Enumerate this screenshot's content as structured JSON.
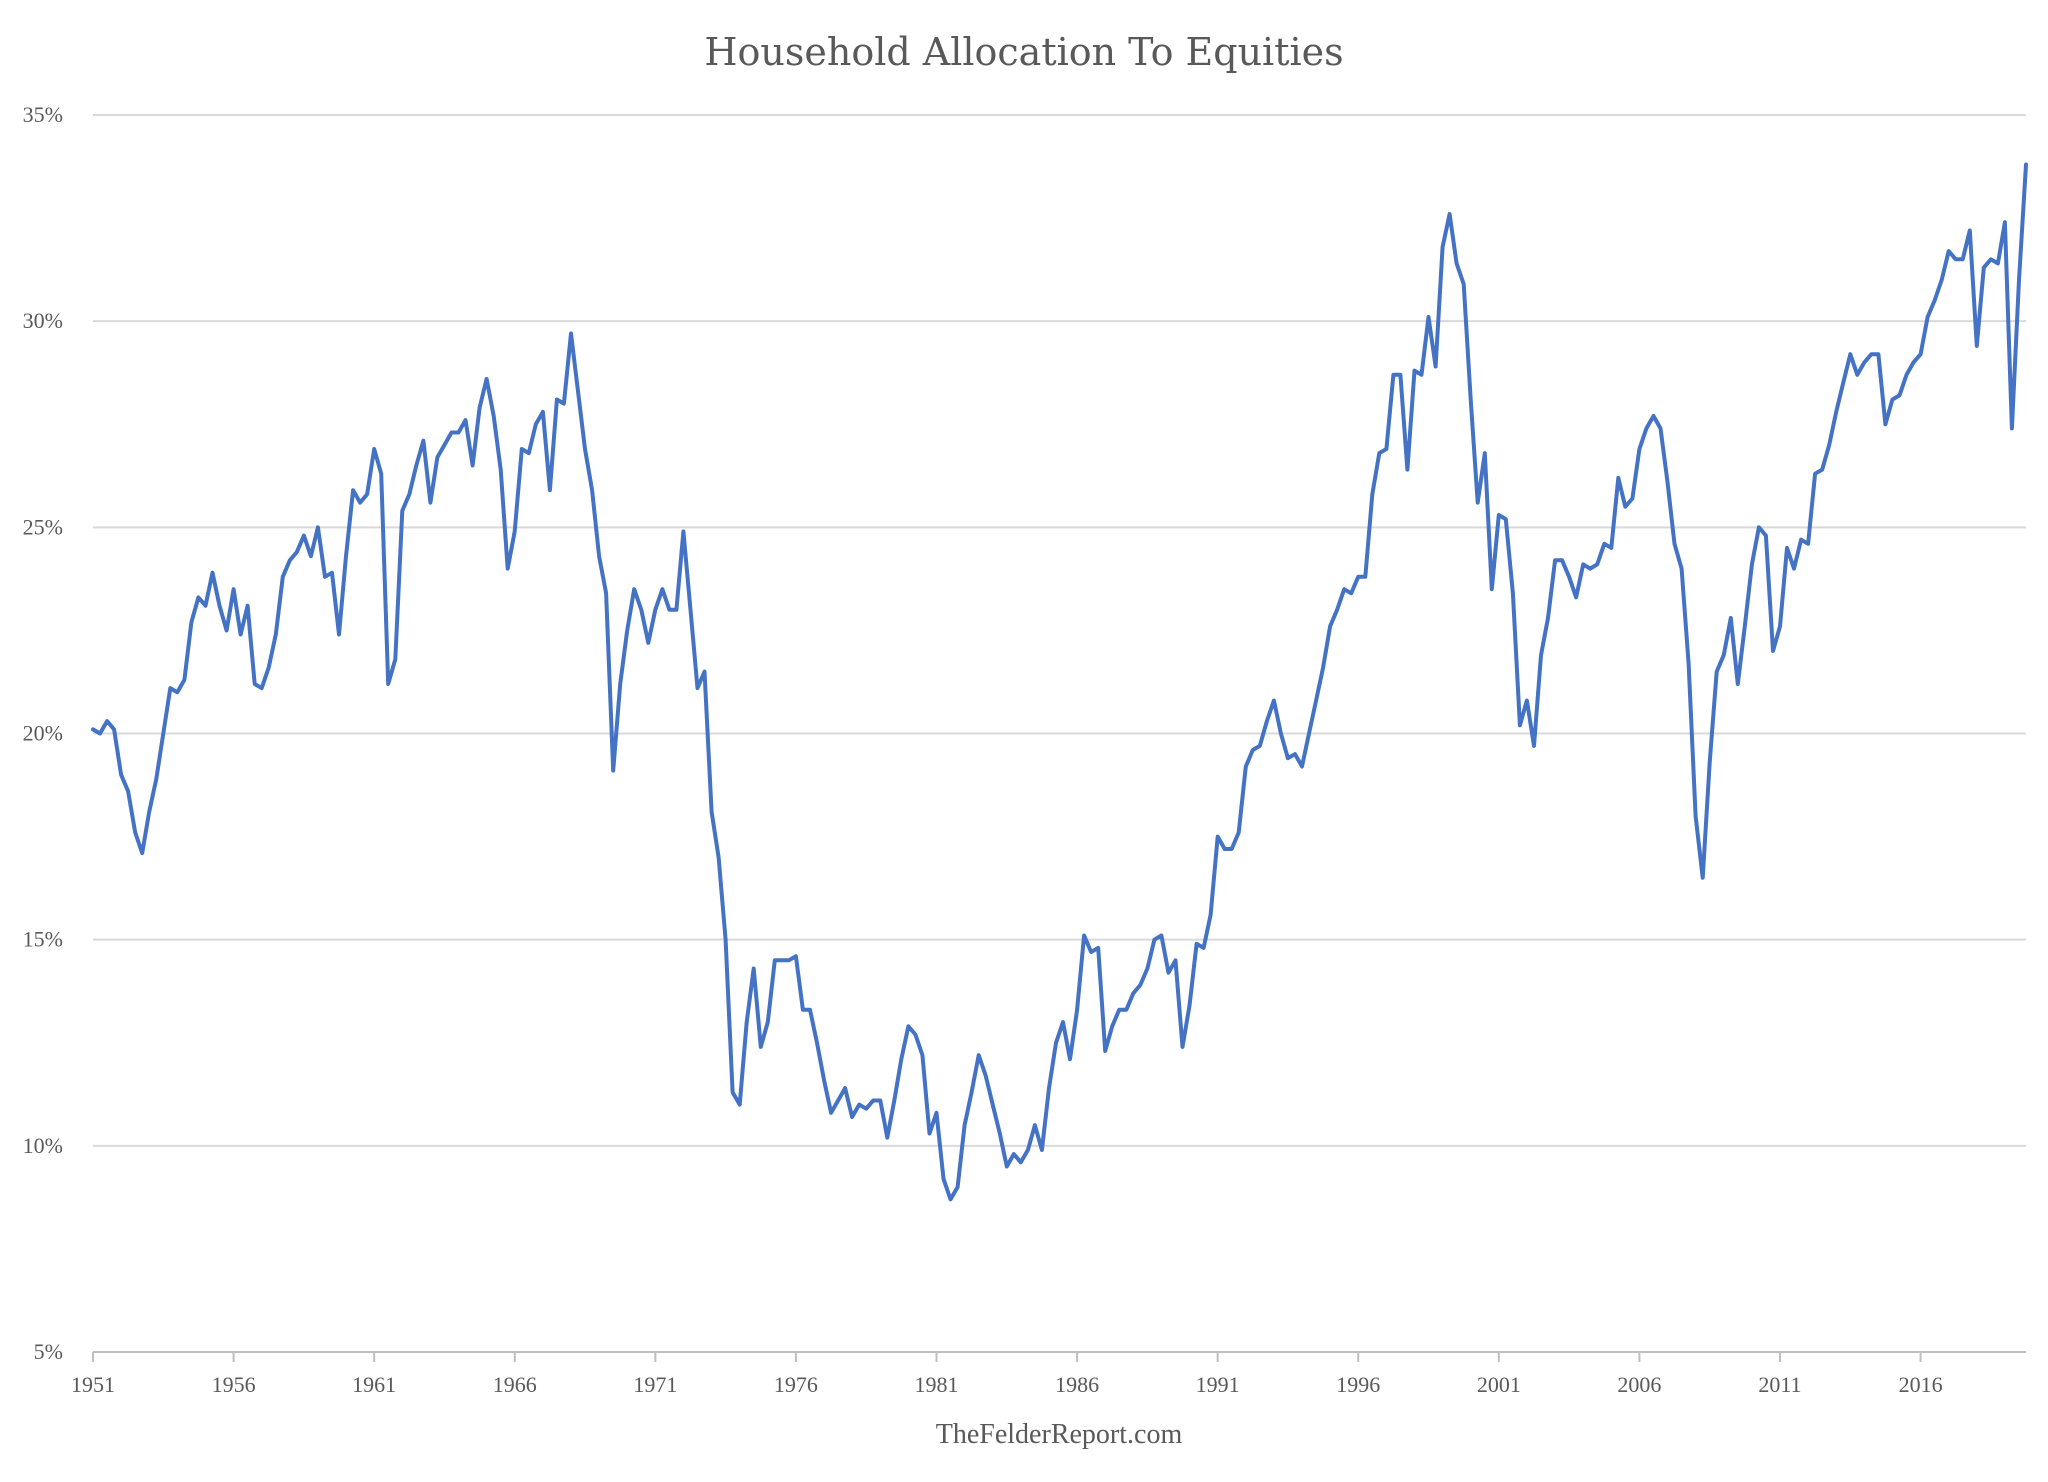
{
  "chart_data": {
    "type": "line",
    "title": "Household Allocation To Equities",
    "source": "TheFelderReport.com",
    "y_format": "percent",
    "ylim": [
      5,
      35
    ],
    "y_ticks": [
      "5%",
      "10%",
      "15%",
      "20%",
      "25%",
      "30%",
      "35%"
    ],
    "y_tick_values": [
      5,
      10,
      15,
      20,
      25,
      30,
      35
    ],
    "x_range": [
      1951,
      2019.75
    ],
    "x_ticks": [
      "1951",
      "1956",
      "1961",
      "1966",
      "1971",
      "1976",
      "1981",
      "1986",
      "1991",
      "1996",
      "2001",
      "2006",
      "2011",
      "2016"
    ],
    "x_tick_values": [
      1951,
      1956,
      1961,
      1966,
      1971,
      1976,
      1981,
      1986,
      1991,
      1996,
      2001,
      2006,
      2011,
      2016
    ],
    "grid": "horizontal",
    "line_color": "#4472c4",
    "series": [
      {
        "x": [
          1951,
          1951.25,
          1951.5,
          1951.75,
          1952,
          1952.25,
          1952.5,
          1952.75,
          1953,
          1953.25,
          1953.5,
          1953.75,
          1954,
          1954.25,
          1954.5,
          1954.75,
          1955,
          1955.25,
          1955.5,
          1955.75,
          1956,
          1956.25,
          1956.5,
          1956.75,
          1957,
          1957.25,
          1957.5,
          1957.75,
          1958,
          1958.25,
          1958.5,
          1958.75,
          1959,
          1959.25,
          1959.5,
          1959.75,
          1960,
          1960.25,
          1960.5,
          1960.75,
          1961,
          1961.25,
          1961.5,
          1961.75,
          1962,
          1962.25,
          1962.5,
          1962.75,
          1963,
          1963.25,
          1963.5,
          1963.75,
          1964,
          1964.25,
          1964.5,
          1964.75,
          1965,
          1965.25,
          1965.5,
          1965.75,
          1966,
          1966.25,
          1966.5,
          1966.75,
          1967,
          1967.25,
          1967.5,
          1967.75,
          1968,
          1968.25,
          1968.5,
          1968.75,
          1969,
          1969.25,
          1969.5,
          1969.75,
          1970,
          1970.25,
          1970.5,
          1970.75,
          1971,
          1971.25,
          1971.5,
          1971.75,
          1972,
          1972.25,
          1972.5,
          1972.75,
          1973,
          1973.25,
          1973.5,
          1973.75,
          1974,
          1974.25,
          1974.5,
          1974.75,
          1975,
          1975.25,
          1975.5,
          1975.75,
          1976,
          1976.25,
          1976.5,
          1976.75,
          1977,
          1977.25,
          1977.5,
          1977.75,
          1978,
          1978.25,
          1978.5,
          1978.75,
          1979,
          1979.25,
          1979.5,
          1979.75,
          1980,
          1980.25,
          1980.5,
          1980.75,
          1981,
          1981.25,
          1981.5,
          1981.75,
          1982,
          1982.25,
          1982.5,
          1982.75,
          1983,
          1983.25,
          1983.5,
          1983.75,
          1984,
          1984.25,
          1984.5,
          1984.75,
          1985,
          1985.25,
          1985.5,
          1985.75,
          1986,
          1986.25,
          1986.5,
          1986.75,
          1987,
          1987.25,
          1987.5,
          1987.75,
          1988,
          1988.25,
          1988.5,
          1988.75,
          1989,
          1989.25,
          1989.5,
          1989.75,
          1990,
          1990.25,
          1990.5,
          1990.75,
          1991,
          1991.25,
          1991.5,
          1991.75,
          1992,
          1992.25,
          1992.5,
          1992.75,
          1993,
          1993.25,
          1993.5,
          1993.75,
          1994,
          1994.25,
          1994.5,
          1994.75,
          1995,
          1995.25,
          1995.5,
          1995.75,
          1996,
          1996.25,
          1996.5,
          1996.75,
          1997,
          1997.25,
          1997.5,
          1997.75,
          1998,
          1998.25,
          1998.5,
          1998.75,
          1999,
          1999.25,
          1999.5,
          1999.75,
          2000,
          2000.25,
          2000.5,
          2000.75,
          2001,
          2001.25,
          2001.5,
          2001.75,
          2002,
          2002.25,
          2002.5,
          2002.75,
          2003,
          2003.25,
          2003.5,
          2003.75,
          2004,
          2004.25,
          2004.5,
          2004.75,
          2005,
          2005.25,
          2005.5,
          2005.75,
          2006,
          2006.25,
          2006.5,
          2006.75,
          2007,
          2007.25,
          2007.5,
          2007.75,
          2008,
          2008.25,
          2008.5,
          2008.75,
          2009,
          2009.25,
          2009.5,
          2009.75,
          2010,
          2010.25,
          2010.5,
          2010.75,
          2011,
          2011.25,
          2011.5,
          2011.75,
          2012,
          2012.25,
          2012.5,
          2012.75,
          2013,
          2013.25,
          2013.5,
          2013.75,
          2014,
          2014.25,
          2014.5,
          2014.75,
          2015,
          2015.25,
          2015.5,
          2015.75,
          2016,
          2016.25,
          2016.5,
          2016.75,
          2017,
          2017.25,
          2017.5,
          2017.75,
          2018,
          2018.25,
          2018.5,
          2018.75,
          2019,
          2019.25,
          2019.5,
          2019.75
        ],
        "y": [
          20.1,
          20.0,
          20.3,
          20.1,
          19.0,
          18.6,
          17.6,
          17.1,
          18.1,
          18.9,
          20.0,
          21.1,
          21.0,
          21.3,
          22.7,
          23.3,
          23.1,
          23.9,
          23.1,
          22.5,
          23.5,
          22.4,
          23.1,
          21.2,
          21.1,
          21.6,
          22.4,
          23.8,
          24.2,
          24.4,
          24.8,
          24.3,
          25.0,
          23.8,
          23.9,
          22.4,
          24.3,
          25.9,
          25.6,
          25.8,
          26.9,
          26.3,
          21.2,
          21.8,
          25.4,
          25.8,
          26.5,
          27.1,
          25.6,
          26.7,
          27.0,
          27.3,
          27.3,
          27.6,
          26.5,
          27.9,
          28.6,
          27.7,
          26.4,
          24.0,
          24.9,
          26.9,
          26.8,
          27.5,
          27.8,
          25.9,
          28.1,
          28.0,
          29.7,
          28.3,
          26.9,
          25.9,
          24.3,
          23.4,
          19.1,
          21.2,
          22.5,
          23.5,
          23.0,
          22.2,
          23.0,
          23.5,
          23.0,
          23.0,
          24.9,
          23.0,
          21.1,
          21.5,
          18.1,
          17.0,
          15.0,
          11.3,
          11.0,
          13.0,
          14.3,
          12.4,
          13.0,
          14.5,
          14.5,
          14.5,
          14.6,
          13.3,
          13.3,
          12.5,
          11.6,
          10.8,
          11.1,
          11.4,
          10.7,
          11.0,
          10.9,
          11.1,
          11.1,
          10.2,
          11.1,
          12.1,
          12.9,
          12.7,
          12.2,
          10.3,
          10.8,
          9.2,
          8.7,
          9.0,
          10.5,
          11.3,
          12.2,
          11.7,
          11.0,
          10.3,
          9.5,
          9.8,
          9.6,
          9.9,
          10.5,
          9.9,
          11.4,
          12.5,
          13.0,
          12.1,
          13.3,
          15.1,
          14.7,
          14.8,
          12.3,
          12.9,
          13.3,
          13.3,
          13.7,
          13.9,
          14.3,
          15.0,
          15.1,
          14.2,
          14.5,
          12.4,
          13.4,
          14.9,
          14.8,
          15.6,
          17.5,
          17.2,
          17.2,
          17.6,
          19.2,
          19.6,
          19.7,
          20.3,
          20.8,
          20.0,
          19.4,
          19.5,
          19.2,
          20.0,
          20.8,
          21.6,
          22.6,
          23.0,
          23.5,
          23.4,
          23.8,
          23.8,
          25.8,
          26.8,
          26.9,
          28.7,
          28.7,
          26.4,
          28.8,
          28.7,
          30.1,
          28.9,
          31.8,
          32.6,
          31.4,
          30.9,
          28.1,
          25.6,
          26.8,
          23.5,
          25.3,
          25.2,
          23.4,
          20.2,
          20.8,
          19.7,
          21.9,
          22.8,
          24.2,
          24.2,
          23.8,
          23.3,
          24.1,
          24.0,
          24.1,
          24.6,
          24.5,
          26.2,
          25.5,
          25.7,
          26.9,
          27.4,
          27.7,
          27.4,
          26.1,
          24.6,
          24.0,
          21.7,
          18.0,
          16.5,
          19.3,
          21.5,
          21.9,
          22.8,
          21.2,
          22.6,
          24.1,
          25.0,
          24.8,
          22.0,
          22.6,
          24.5,
          24.0,
          24.7,
          24.6,
          26.3,
          26.4,
          27.0,
          27.8,
          28.5,
          29.2,
          28.7,
          29.0,
          29.2,
          29.2,
          27.5,
          28.1,
          28.2,
          28.7,
          29.0,
          29.2,
          30.1,
          30.5,
          31.0,
          31.7,
          31.5,
          31.5,
          32.2,
          29.4,
          31.3,
          31.5,
          31.4,
          32.4,
          27.4,
          31.0,
          33.8
        ]
      }
    ]
  }
}
